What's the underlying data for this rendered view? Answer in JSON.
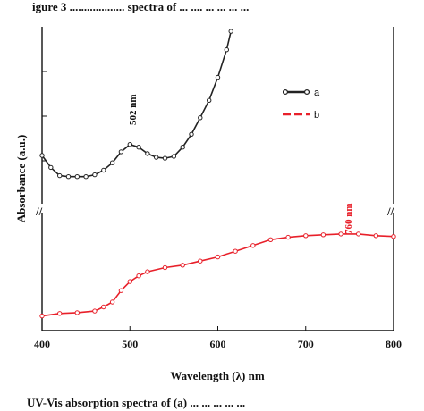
{
  "top_caption": "igure 3  ...................  spectra of ... ....  ... ...  ... ...",
  "bottom_caption": "UV-Vis  absorption  spectra  of  (a) ... ... ...  ... ...",
  "chart_data": {
    "type": "line",
    "xlabel": "Wavelength (λ) nm",
    "ylabel": "Absorbance (a.u.)",
    "xlim": [
      400,
      800
    ],
    "x_ticks": [
      400,
      500,
      600,
      700,
      800
    ],
    "broken_y_axis": true,
    "legend_position": "right, upper panel",
    "series": [
      {
        "name": "a",
        "color": "#222222",
        "marker": "open-circle",
        "panel": "upper",
        "peak_label": "502 nm",
        "x": [
          400,
          410,
          420,
          430,
          440,
          450,
          460,
          470,
          480,
          490,
          500,
          510,
          520,
          530,
          540,
          550,
          560,
          570,
          580,
          590,
          600,
          610,
          615
        ],
        "y": [
          0.35,
          0.22,
          0.13,
          0.12,
          0.12,
          0.12,
          0.14,
          0.19,
          0.27,
          0.39,
          0.47,
          0.44,
          0.37,
          0.33,
          0.32,
          0.34,
          0.44,
          0.58,
          0.76,
          0.95,
          1.2,
          1.5,
          1.7
        ]
      },
      {
        "name": "b",
        "color": "#e8202a",
        "marker": "open-circle",
        "panel": "lower",
        "peak_label": "760 nm",
        "x": [
          400,
          420,
          440,
          460,
          470,
          480,
          490,
          500,
          510,
          520,
          540,
          560,
          580,
          600,
          620,
          640,
          660,
          680,
          700,
          720,
          740,
          760,
          780,
          800
        ],
        "y": [
          0.07,
          0.1,
          0.11,
          0.13,
          0.18,
          0.24,
          0.38,
          0.49,
          0.56,
          0.61,
          0.66,
          0.69,
          0.74,
          0.79,
          0.86,
          0.93,
          1.0,
          1.03,
          1.05,
          1.06,
          1.07,
          1.07,
          1.05,
          1.04
        ]
      }
    ]
  }
}
